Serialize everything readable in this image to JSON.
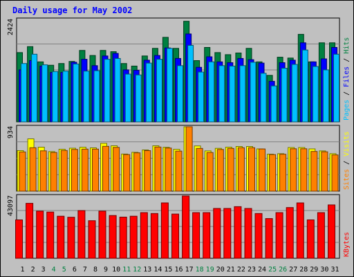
{
  "chart_data": {
    "type": "bar",
    "title": "Daily usage for May 2002",
    "categories": [
      "1",
      "2",
      "3",
      "4",
      "5",
      "6",
      "7",
      "8",
      "9",
      "10",
      "11",
      "12",
      "13",
      "14",
      "15",
      "16",
      "17",
      "18",
      "19",
      "20",
      "21",
      "22",
      "23",
      "24",
      "25",
      "26",
      "27",
      "28",
      "29",
      "30",
      "31"
    ],
    "weekend_days": [
      "4",
      "5",
      "11",
      "12",
      "18",
      "19",
      "25",
      "26"
    ],
    "panels": [
      {
        "name": "hits-files-pages",
        "max_label": "2424",
        "ylim": [
          0,
          2424
        ],
        "axis_label_parts": [
          "Pages",
          " / ",
          "Files",
          " / ",
          "Hits"
        ],
        "series": [
          {
            "name": "Hits",
            "color": "#008040",
            "values": [
              1640,
              1780,
              1420,
              1340,
              1380,
              1430,
              1690,
              1570,
              1690,
              1660,
              1380,
              1320,
              1560,
              1740,
              2000,
              1740,
              2380,
              1450,
              1760,
              1640,
              1590,
              1630,
              1740,
              1420,
              1100,
              1530,
              1510,
              2070,
              1420,
              1870,
              1870
            ]
          },
          {
            "name": "Files",
            "color": "#0000ff",
            "values": [
              1230,
              1450,
              1320,
              1170,
              1170,
              1410,
              1480,
              1330,
              1560,
              1620,
              1230,
              1220,
              1460,
              1570,
              1750,
              1500,
              2080,
              1290,
              1540,
              1420,
              1400,
              1500,
              1470,
              1390,
              960,
              1400,
              1460,
              1870,
              1420,
              1490,
              1760
            ]
          },
          {
            "name": "Pages",
            "color": "#00c0ff",
            "values": [
              1380,
              1600,
              1350,
              1190,
              1200,
              1370,
              1200,
              1210,
              1480,
              1500,
              1130,
              1110,
              1390,
              1480,
              1740,
              1330,
              1810,
              1180,
              1420,
              1330,
              1320,
              1330,
              1410,
              1150,
              850,
              1270,
              1360,
              1700,
              1310,
              1230,
              1600
            ]
          }
        ]
      },
      {
        "name": "visits-sites",
        "max_label": "934",
        "ylim": [
          0,
          934
        ],
        "axis_label_parts": [
          "Sites",
          " / ",
          "Visits"
        ],
        "series": [
          {
            "name": "Visits",
            "color": "#ffff00",
            "values": [
              588,
              758,
              638,
              573,
              608,
              623,
              637,
              628,
              693,
              658,
              538,
              563,
              598,
              658,
              636,
              607,
              934,
              656,
              583,
              621,
              638,
              648,
              648,
              613,
              536,
              543,
              633,
              633,
              613,
              583,
              543
            ]
          },
          {
            "name": "Sites",
            "color": "#ff8000",
            "values": [
              568,
              630,
              585,
              560,
              590,
              605,
              610,
              610,
              650,
              635,
              530,
              555,
              588,
              640,
              625,
              580,
              934,
              620,
              560,
              605,
              620,
              630,
              630,
              612,
              530,
              535,
              615,
              615,
              575,
              570,
              525
            ]
          }
        ]
      },
      {
        "name": "kbytes",
        "max_label": "43097",
        "ylim": [
          0,
          43097
        ],
        "axis_label_parts": [
          "KBytes"
        ],
        "series": [
          {
            "name": "KBytes",
            "color": "#ff0000",
            "values": [
              26600,
              38000,
              32600,
              32000,
              29100,
              28400,
              33000,
              26000,
              32600,
              29600,
              28500,
              29100,
              31600,
              31000,
              38300,
              30600,
              43097,
              31600,
              31600,
              34500,
              34500,
              35700,
              34500,
              31000,
              27500,
              31600,
              35100,
              38300,
              26600,
              31600,
              36900
            ]
          }
        ]
      }
    ]
  }
}
